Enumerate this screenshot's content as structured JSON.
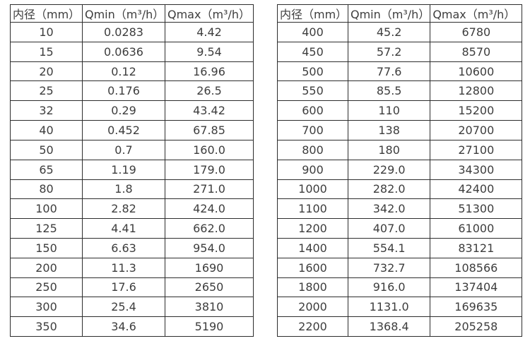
{
  "colors": {
    "text": "#3d3d3d",
    "border": "#2d2d2d",
    "background": "#ffffff"
  },
  "table_left": {
    "headers": [
      "内径（mm）",
      "Qmin（m³/h）",
      "Qmax（m³/h）"
    ],
    "rows": [
      [
        "10",
        "0.0283",
        "4.42"
      ],
      [
        "15",
        "0.0636",
        "9.54"
      ],
      [
        "20",
        "0.12",
        "16.96"
      ],
      [
        "25",
        "0.176",
        "26.5"
      ],
      [
        "32",
        "0.29",
        "43.42"
      ],
      [
        "40",
        "0.452",
        "67.85"
      ],
      [
        "50",
        "0.7",
        "160.0"
      ],
      [
        "65",
        "1.19",
        "179.0"
      ],
      [
        "80",
        "1.8",
        "271.0"
      ],
      [
        "100",
        "2.82",
        "424.0"
      ],
      [
        "125",
        "4.41",
        "662.0"
      ],
      [
        "150",
        "6.63",
        "954.0"
      ],
      [
        "200",
        "11.3",
        "1690"
      ],
      [
        "250",
        "17.6",
        "2650"
      ],
      [
        "300",
        "25.4",
        "3810"
      ],
      [
        "350",
        "34.6",
        "5190"
      ]
    ]
  },
  "table_right": {
    "headers": [
      "内径（mm）",
      "Qmin（m³/h）",
      "Qmax（m³/h）"
    ],
    "rows": [
      [
        "400",
        "45.2",
        "6780"
      ],
      [
        "450",
        "57.2",
        "8570"
      ],
      [
        "500",
        "77.6",
        "10600"
      ],
      [
        "550",
        "85.5",
        "12800"
      ],
      [
        "600",
        "110",
        "15200"
      ],
      [
        "700",
        "138",
        "20700"
      ],
      [
        "800",
        "180",
        "27100"
      ],
      [
        "900",
        "229.0",
        "34300"
      ],
      [
        "1000",
        "282.0",
        "42400"
      ],
      [
        "1100",
        "342.0",
        "51300"
      ],
      [
        "1200",
        "407.0",
        "61000"
      ],
      [
        "1400",
        "554.1",
        "83121"
      ],
      [
        "1600",
        "732.7",
        "108566"
      ],
      [
        "1800",
        "916.0",
        "137404"
      ],
      [
        "2000",
        "1131.0",
        "169635"
      ],
      [
        "2200",
        "1368.4",
        "205258"
      ]
    ]
  }
}
